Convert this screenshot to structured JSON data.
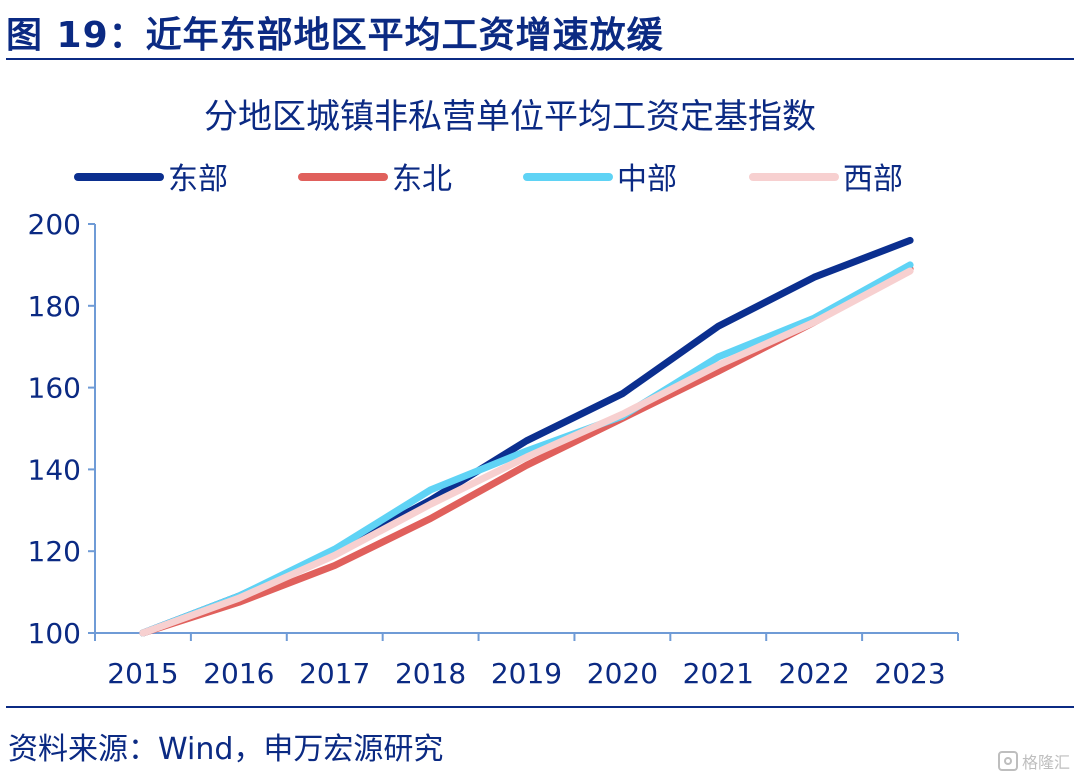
{
  "header": {
    "figure_title": "图 19：近年东部地区平均工资增速放缓"
  },
  "footer": {
    "source": "资料来源：Wind，申万宏源研究"
  },
  "watermark": {
    "text": "格隆汇"
  },
  "chart_data": {
    "type": "line",
    "title": "分地区城镇非私营单位平均工资定基指数",
    "xlabel": "",
    "ylabel": "",
    "x": [
      "2015",
      "2016",
      "2017",
      "2018",
      "2019",
      "2020",
      "2021",
      "2022",
      "2023"
    ],
    "ylim": [
      100,
      200
    ],
    "yticks": [
      100,
      120,
      140,
      160,
      180,
      200
    ],
    "grid": false,
    "legend_position": "top",
    "series": [
      {
        "name": "东部",
        "color": "#0b2f8f",
        "values": [
          100,
          109,
          120,
          132.5,
          147,
          158.5,
          175,
          187,
          196
        ]
      },
      {
        "name": "东北",
        "color": "#e0605c",
        "values": [
          100,
          107.5,
          116.5,
          128,
          141,
          152.5,
          164,
          176,
          189
        ]
      },
      {
        "name": "中部",
        "color": "#5fd3f5",
        "values": [
          100,
          109,
          120.5,
          135,
          144.5,
          153,
          167.5,
          177,
          190
        ]
      },
      {
        "name": "西部",
        "color": "#f7d0d0",
        "values": [
          100,
          108.5,
          119,
          131.5,
          143,
          153.5,
          165.5,
          176,
          188.5
        ]
      }
    ]
  }
}
